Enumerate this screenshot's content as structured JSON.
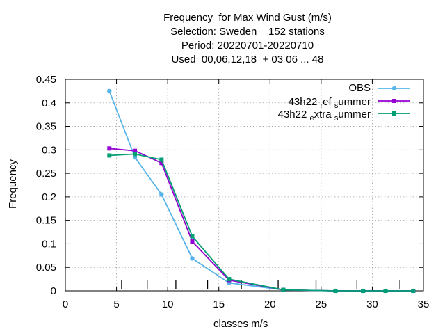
{
  "chart_data": {
    "type": "line",
    "title_lines": [
      "Frequency  for Max Wind Gust (m/s)",
      "Selection: Sweden    152 stations",
      "Period: 20220701-20220710",
      "Used  00,06,12,18  + 03 06 ... 48"
    ],
    "xlabel": "classes m/s",
    "ylabel": "Frequency",
    "xlim": [
      0,
      35
    ],
    "ylim": [
      0,
      0.45
    ],
    "x_ticks": [
      0,
      5,
      10,
      15,
      20,
      25,
      30,
      35
    ],
    "y_ticks": [
      0,
      0.05,
      0.1,
      0.15,
      0.2,
      0.25,
      0.3,
      0.35,
      0.4,
      0.45
    ],
    "grid": true,
    "legend_position": "top-right",
    "class_boundaries": [
      5.5,
      8,
      10.8,
      13.9,
      17.2,
      20.8,
      24.5,
      28.5,
      32.7
    ],
    "series": [
      {
        "name": "OBS",
        "color": "#56b4e9",
        "marker": "circle",
        "x": [
          4.3,
          6.8,
          9.4,
          12.4,
          16.0,
          21.3,
          26.4,
          29.1,
          31.3,
          34.0
        ],
        "y": [
          0.425,
          0.284,
          0.205,
          0.069,
          0.017,
          0.002,
          0.0,
          0.0,
          0.0,
          0.0
        ]
      },
      {
        "name": "43h22 ref summer",
        "color": "#9400d3",
        "marker": "square",
        "x": [
          4.3,
          6.8,
          9.4,
          12.4,
          16.0,
          21.3,
          26.4,
          29.1,
          31.3,
          34.0
        ],
        "y": [
          0.303,
          0.298,
          0.272,
          0.105,
          0.023,
          0.002,
          0.0,
          0.0,
          0.0,
          0.0
        ]
      },
      {
        "name": "43h22 extra summer",
        "color": "#009e73",
        "marker": "square",
        "x": [
          4.3,
          6.8,
          9.4,
          12.4,
          16.0,
          21.3,
          26.4,
          29.1,
          31.3,
          34.0
        ],
        "y": [
          0.288,
          0.291,
          0.279,
          0.116,
          0.025,
          0.002,
          0.0,
          0.0,
          0.0,
          0.0
        ]
      }
    ]
  },
  "legend": {
    "obs": "OBS",
    "ref_a": "43h22 ",
    "ref_b": "r",
    "ref_c": "ef ",
    "ref_d": "s",
    "ref_e": "ummer",
    "extra_a": "43h22 ",
    "extra_b": "e",
    "extra_c": "xtra ",
    "extra_d": "s",
    "extra_e": "ummer"
  }
}
